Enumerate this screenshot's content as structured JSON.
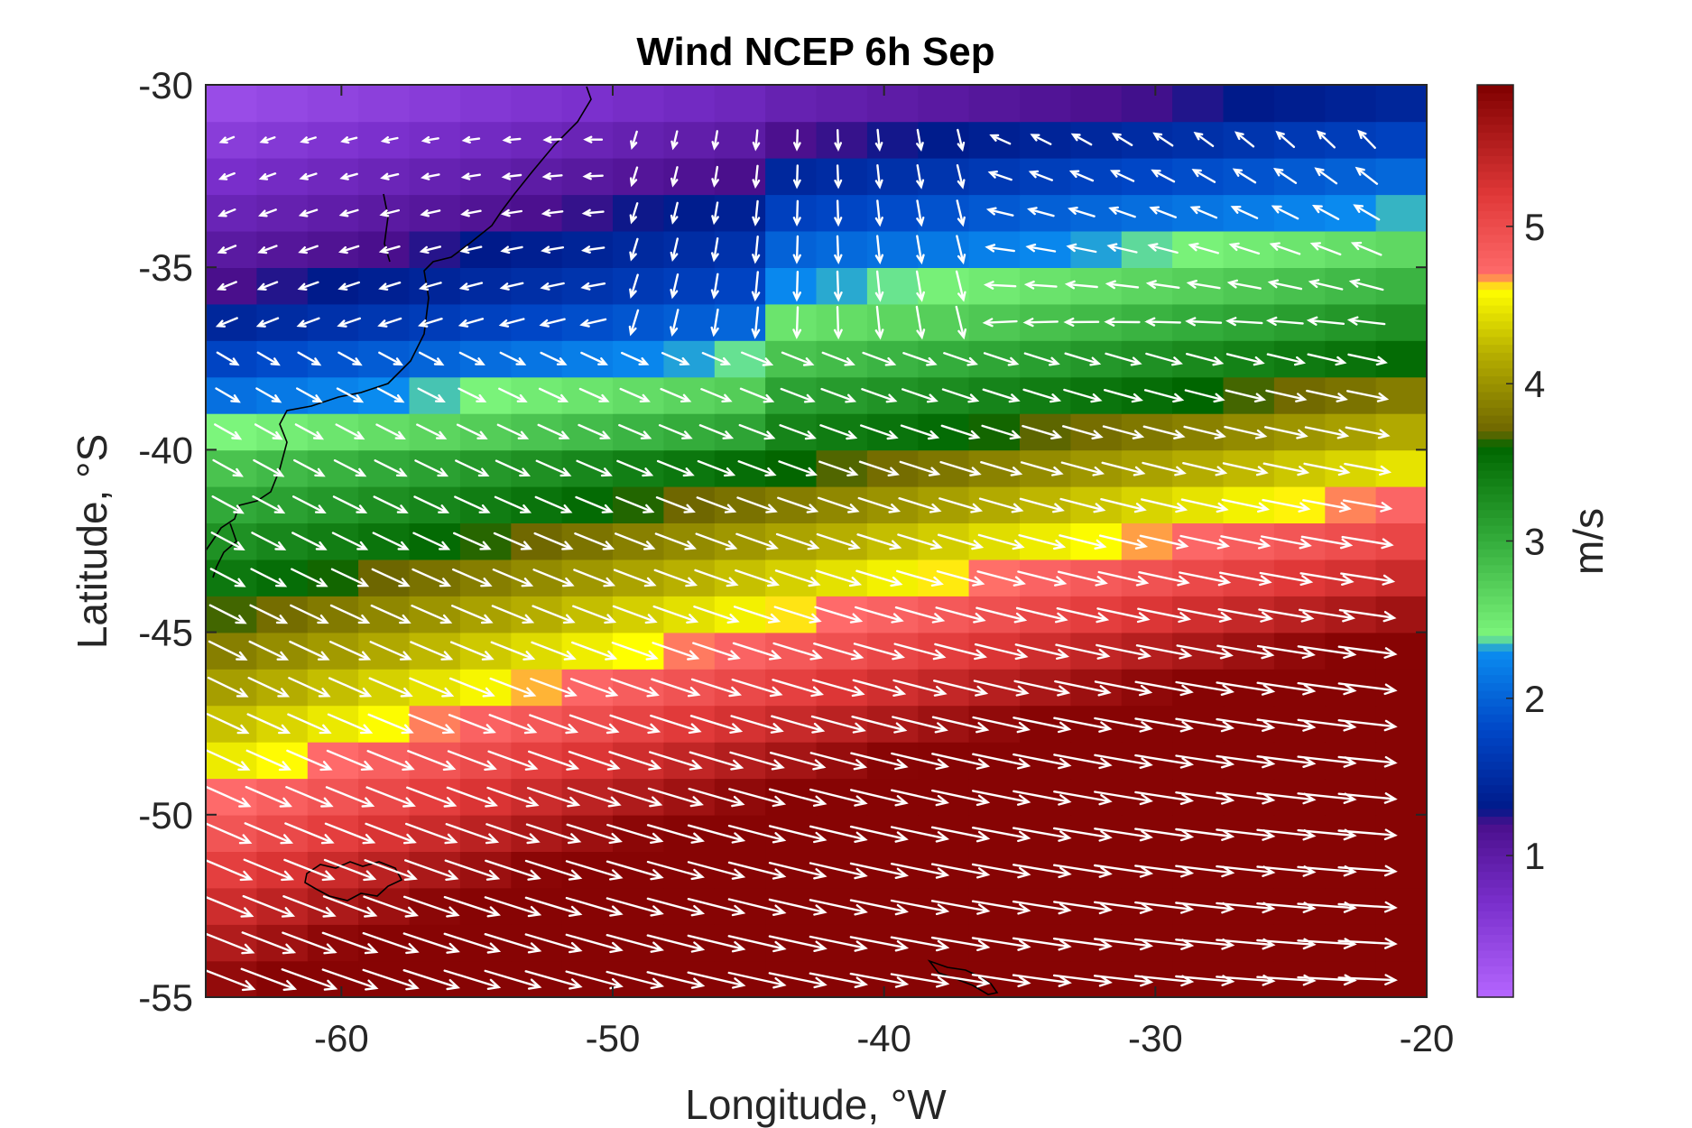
{
  "chart_data": {
    "type": "heatmap",
    "title": "Wind NCEP 6h Sep",
    "xlabel": "Longitude, °W",
    "ylabel": "Latitude, °S",
    "xlim": [
      -65,
      -20
    ],
    "ylim": [
      -55,
      -30
    ],
    "xticks": [
      -60,
      -50,
      -40,
      -30,
      -20
    ],
    "yticks": [
      -30,
      -35,
      -40,
      -45,
      -50,
      -55
    ],
    "colorbar": {
      "label": "m/s",
      "range": [
        0.1,
        5.9
      ],
      "ticks": [
        1,
        2,
        3,
        4,
        5
      ],
      "colormap": [
        {
          "value": 0.1,
          "color": "#b566ff"
        },
        {
          "value": 0.7,
          "color": "#7a2fcc"
        },
        {
          "value": 1.2,
          "color": "#4a0f8c"
        },
        {
          "value": 1.3,
          "color": "#001a8a"
        },
        {
          "value": 1.8,
          "color": "#0047c7"
        },
        {
          "value": 2.3,
          "color": "#0a8cf0"
        },
        {
          "value": 2.4,
          "color": "#7cf57c"
        },
        {
          "value": 3.0,
          "color": "#34ad3c"
        },
        {
          "value": 3.6,
          "color": "#006600"
        },
        {
          "value": 3.7,
          "color": "#6e6600"
        },
        {
          "value": 4.2,
          "color": "#b8b000"
        },
        {
          "value": 4.6,
          "color": "#ffff00"
        },
        {
          "value": 4.7,
          "color": "#ff6b6b"
        },
        {
          "value": 5.2,
          "color": "#e03838"
        },
        {
          "value": 5.9,
          "color": "#800000"
        }
      ]
    },
    "vector_field": "wind vectors (white arrows) over the grid; mostly westerly flow increasing southward",
    "grid": false
  }
}
